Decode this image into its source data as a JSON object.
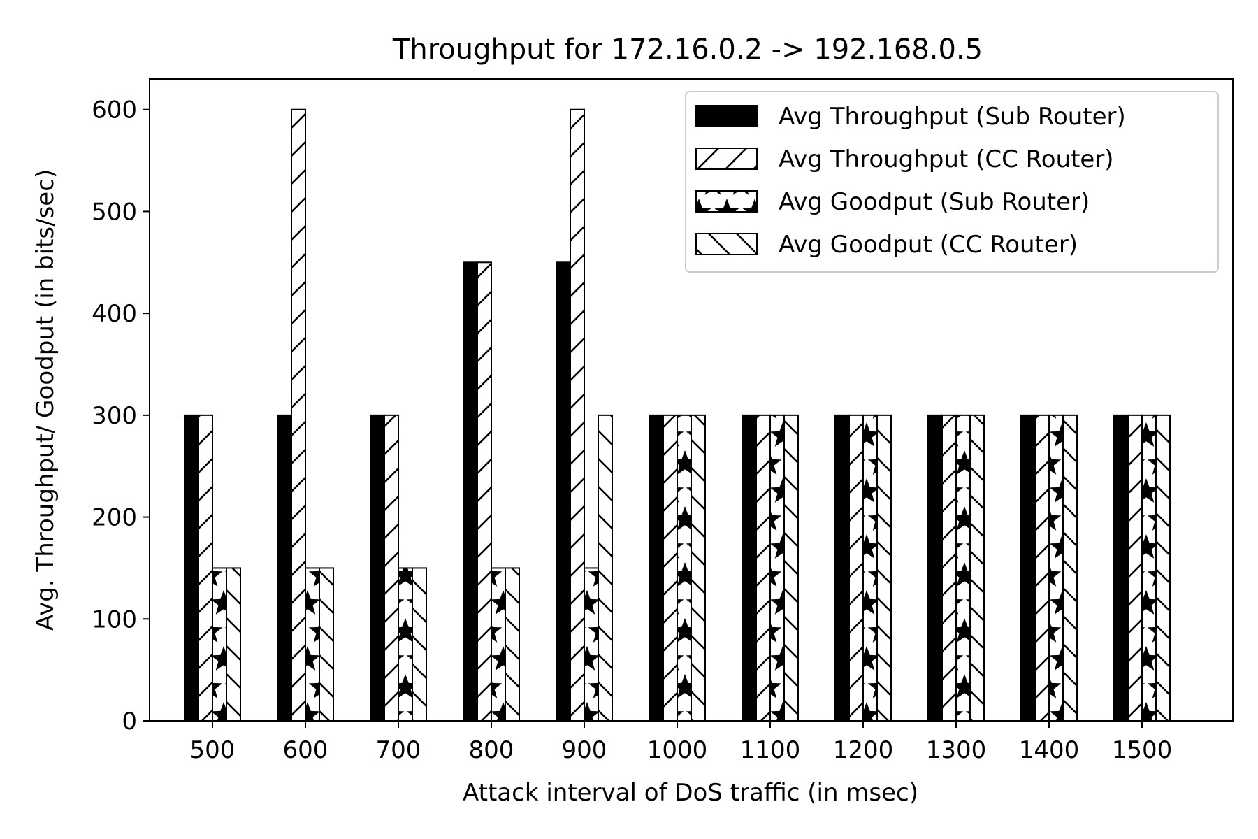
{
  "chart_data": {
    "type": "bar",
    "title": "Throughput for 172.16.0.2 -> 192.168.0.5",
    "xlabel": "Attack interval of DoS traffic (in msec)",
    "ylabel": "Avg. Throughput/ Goodput  (in bits/sec)",
    "categories": [
      "500",
      "600",
      "700",
      "800",
      "900",
      "1000",
      "1100",
      "1200",
      "1300",
      "1400",
      "1500"
    ],
    "ylim": [
      0,
      630
    ],
    "yticks": [
      0,
      100,
      200,
      300,
      400,
      500,
      600
    ],
    "grid": false,
    "legend_position": "top-right",
    "series": [
      {
        "name": "Avg Throughput (Sub Router)",
        "pattern": "solid",
        "values": [
          300,
          300,
          300,
          450,
          450,
          300,
          300,
          300,
          300,
          300,
          300
        ]
      },
      {
        "name": "Avg Throughput (CC Router)",
        "pattern": "forward-diagonal",
        "values": [
          300,
          600,
          300,
          450,
          600,
          300,
          300,
          300,
          300,
          300,
          300
        ]
      },
      {
        "name": "Avg Goodput (Sub Router)",
        "pattern": "stars",
        "values": [
          150,
          150,
          150,
          150,
          150,
          300,
          300,
          300,
          300,
          300,
          300
        ]
      },
      {
        "name": "Avg Goodput (CC Router)",
        "pattern": "back-diagonal",
        "values": [
          150,
          150,
          150,
          150,
          300,
          300,
          300,
          300,
          300,
          300,
          300
        ]
      }
    ],
    "colors": {
      "ink": "#000000",
      "background": "#ffffff",
      "legend_border": "#cccccc"
    }
  }
}
